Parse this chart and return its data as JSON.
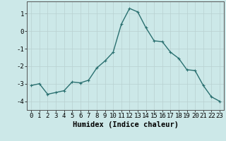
{
  "x": [
    0,
    1,
    2,
    3,
    4,
    5,
    6,
    7,
    8,
    9,
    10,
    11,
    12,
    13,
    14,
    15,
    16,
    17,
    18,
    19,
    20,
    21,
    22,
    23
  ],
  "y": [
    -3.1,
    -3.0,
    -3.6,
    -3.5,
    -3.4,
    -2.9,
    -2.95,
    -2.8,
    -2.1,
    -1.7,
    -1.2,
    0.4,
    1.3,
    1.1,
    0.2,
    -0.55,
    -0.6,
    -1.2,
    -1.55,
    -2.2,
    -2.25,
    -3.1,
    -3.75,
    -4.0
  ],
  "line_color": "#2a7070",
  "marker_color": "#2a7070",
  "bg_color": "#cce8e8",
  "grid_color": "#b8d0d0",
  "xlabel": "Humidex (Indice chaleur)",
  "yticks": [
    -4,
    -3,
    -2,
    -1,
    0,
    1
  ],
  "xtick_labels": [
    "0",
    "1",
    "2",
    "3",
    "4",
    "5",
    "6",
    "7",
    "8",
    "9",
    "10",
    "11",
    "12",
    "13",
    "14",
    "15",
    "16",
    "17",
    "18",
    "19",
    "20",
    "21",
    "22",
    "23"
  ],
  "ylim": [
    -4.5,
    1.7
  ],
  "xlim": [
    -0.5,
    23.5
  ],
  "xlabel_fontsize": 7.5,
  "tick_fontsize": 6.5,
  "line_width": 1.0,
  "marker_size": 2.5
}
